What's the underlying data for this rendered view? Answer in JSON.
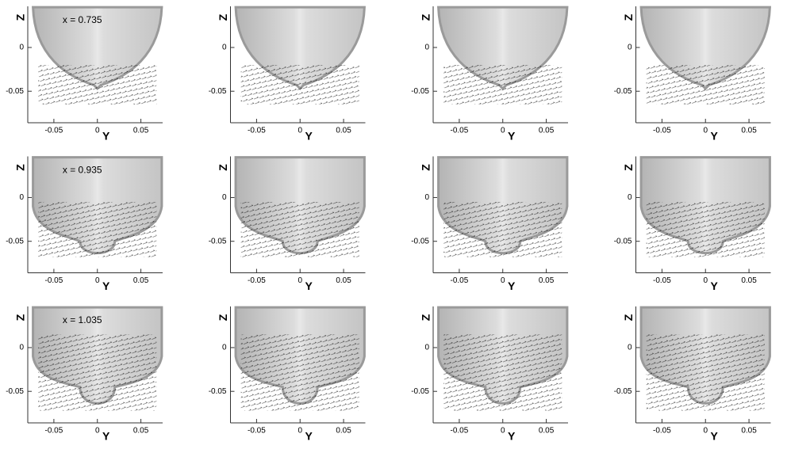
{
  "chart_data": [
    {
      "type": "vector",
      "annotation": "x = 0.735",
      "xlabel": "Y",
      "ylabel": "Z",
      "xlim": [
        -0.08,
        0.075
      ],
      "ylim": [
        -0.086,
        0.047
      ],
      "xticks": [
        -0.05,
        0,
        0.05
      ],
      "yticks": [
        -0.05,
        0
      ]
    },
    {
      "type": "vector",
      "xlabel": "Y",
      "ylabel": "Z",
      "xlim": [
        -0.08,
        0.075
      ],
      "ylim": [
        -0.086,
        0.047
      ],
      "xticks": [
        -0.05,
        0,
        0.05
      ],
      "yticks": [
        -0.05,
        0
      ]
    },
    {
      "type": "vector",
      "xlabel": "Y",
      "ylabel": "Z",
      "xlim": [
        -0.08,
        0.075
      ],
      "ylim": [
        -0.086,
        0.047
      ],
      "xticks": [
        -0.05,
        0,
        0.05
      ],
      "yticks": [
        -0.05,
        0
      ]
    },
    {
      "type": "vector",
      "xlabel": "Y",
      "ylabel": "Z",
      "xlim": [
        -0.08,
        0.075
      ],
      "ylim": [
        -0.086,
        0.047
      ],
      "xticks": [
        -0.05,
        0,
        0.05
      ],
      "yticks": [
        -0.05,
        0
      ]
    },
    {
      "type": "vector",
      "annotation": "x = 0.935",
      "xlabel": "Y",
      "ylabel": "Z",
      "xlim": [
        -0.08,
        0.075
      ],
      "ylim": [
        -0.086,
        0.047
      ],
      "xticks": [
        -0.05,
        0,
        0.05
      ],
      "yticks": [
        -0.05,
        0
      ]
    },
    {
      "type": "vector",
      "xlabel": "Y",
      "ylabel": "Z",
      "xlim": [
        -0.08,
        0.075
      ],
      "ylim": [
        -0.086,
        0.047
      ],
      "xticks": [
        -0.05,
        0,
        0.05
      ],
      "yticks": [
        -0.05,
        0
      ]
    },
    {
      "type": "vector",
      "xlabel": "Y",
      "ylabel": "Z",
      "xlim": [
        -0.08,
        0.075
      ],
      "ylim": [
        -0.086,
        0.047
      ],
      "xticks": [
        -0.05,
        0,
        0.05
      ],
      "yticks": [
        -0.05,
        0
      ]
    },
    {
      "type": "vector",
      "xlabel": "Y",
      "ylabel": "Z",
      "xlim": [
        -0.08,
        0.075
      ],
      "ylim": [
        -0.086,
        0.047
      ],
      "xticks": [
        -0.05,
        0,
        0.05
      ],
      "yticks": [
        -0.05,
        0
      ]
    },
    {
      "type": "vector",
      "annotation": "x = 1.035",
      "xlabel": "Y",
      "ylabel": "Z",
      "xlim": [
        -0.08,
        0.075
      ],
      "ylim": [
        -0.086,
        0.047
      ],
      "xticks": [
        -0.05,
        0,
        0.05
      ],
      "yticks": [
        -0.05,
        0
      ]
    },
    {
      "type": "vector",
      "xlabel": "Y",
      "ylabel": "Z",
      "xlim": [
        -0.08,
        0.075
      ],
      "ylim": [
        -0.086,
        0.047
      ],
      "xticks": [
        -0.05,
        0,
        0.05
      ],
      "yticks": [
        -0.05,
        0
      ]
    },
    {
      "type": "vector",
      "xlabel": "Y",
      "ylabel": "Z",
      "xlim": [
        -0.08,
        0.075
      ],
      "ylim": [
        -0.086,
        0.047
      ],
      "xticks": [
        -0.05,
        0,
        0.05
      ],
      "yticks": [
        -0.05,
        0
      ]
    },
    {
      "type": "vector",
      "xlabel": "Y",
      "ylabel": "Z",
      "xlim": [
        -0.08,
        0.075
      ],
      "ylim": [
        -0.086,
        0.047
      ],
      "xticks": [
        -0.05,
        0,
        0.05
      ],
      "yticks": [
        -0.05,
        0
      ]
    }
  ]
}
